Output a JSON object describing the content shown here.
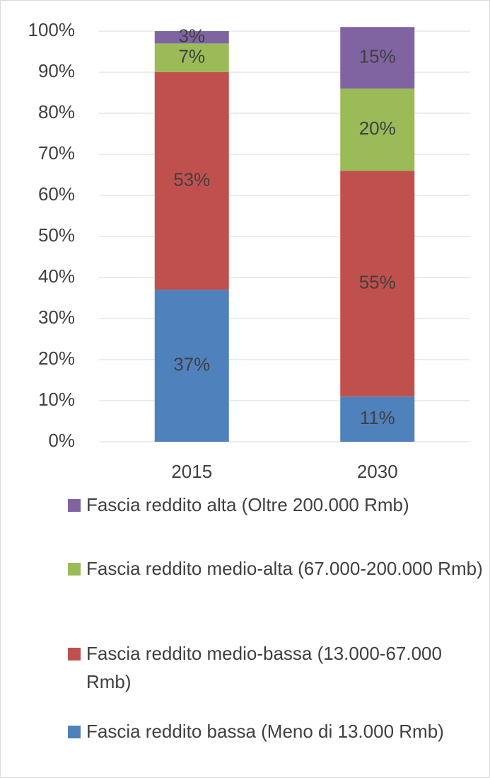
{
  "chart_data": {
    "type": "stacked_bar",
    "categories": [
      "2015",
      "2030"
    ],
    "series": [
      {
        "name": "Fascia reddito bassa (Meno di 13.000 Rmb)",
        "color": "#4f81bd",
        "values": [
          37,
          11
        ],
        "value_labels": [
          "37%",
          "11%"
        ]
      },
      {
        "name": "Fascia reddito medio-bassa (13.000-67.000 Rmb)",
        "color": "#c0504d",
        "values": [
          53,
          55
        ],
        "value_labels": [
          "53%",
          "55%"
        ]
      },
      {
        "name": "Fascia reddito medio-alta (67.000-200.000 Rmb)",
        "color": "#9bbb59",
        "values": [
          7,
          20
        ],
        "value_labels": [
          "7%",
          "20%"
        ]
      },
      {
        "name": "Fascia reddito alta (Oltre 200.000 Rmb)",
        "color": "#8064a2",
        "values": [
          3,
          15
        ],
        "value_labels": [
          "3%",
          "15%"
        ]
      }
    ],
    "ylim": [
      0,
      100
    ],
    "yticks": [
      {
        "value": 0,
        "label": "0%"
      },
      {
        "value": 10,
        "label": "10%"
      },
      {
        "value": 20,
        "label": "20%"
      },
      {
        "value": 30,
        "label": "30%"
      },
      {
        "value": 40,
        "label": "40%"
      },
      {
        "value": 50,
        "label": "50%"
      },
      {
        "value": 60,
        "label": "60%"
      },
      {
        "value": 70,
        "label": "70%"
      },
      {
        "value": 80,
        "label": "80%"
      },
      {
        "value": 90,
        "label": "90%"
      },
      {
        "value": 100,
        "label": "100%"
      }
    ],
    "grid": true,
    "legend": "bottom"
  }
}
